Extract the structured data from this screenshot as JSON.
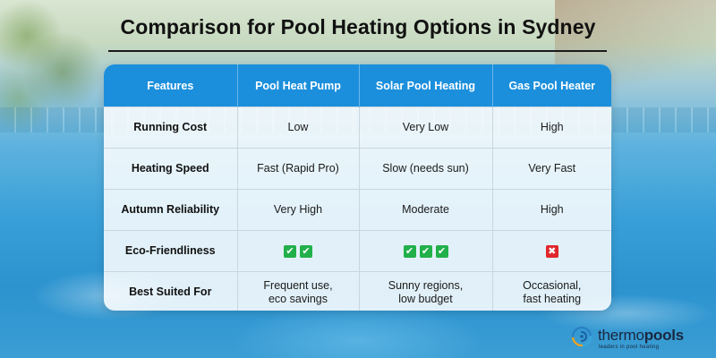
{
  "title": "Comparison for Pool Heating Options in Sydney",
  "table": {
    "headers": [
      "Features",
      "Pool Heat Pump",
      "Solar Pool Heating",
      "Gas Pool Heater"
    ],
    "rows": [
      {
        "feature": "Running Cost",
        "heat_pump": "Low",
        "solar": "Very Low",
        "gas": "High"
      },
      {
        "feature": "Heating Speed",
        "heat_pump": "Fast (Rapid Pro)",
        "solar": "Slow (needs sun)",
        "gas": "Very Fast"
      },
      {
        "feature": "Autumn Reliability",
        "heat_pump": "Very High",
        "solar": "Moderate",
        "gas": "High"
      },
      {
        "feature": "Eco-Friendliness",
        "heat_pump_checks": 2,
        "solar_checks": 3,
        "gas_cross": 1
      },
      {
        "feature": "Best Suited For",
        "heat_pump_line1": "Frequent use,",
        "heat_pump_line2": "eco savings",
        "solar_line1": "Sunny regions,",
        "solar_line2": "low budget",
        "gas_line1": "Occasional,",
        "gas_line2": "fast heating"
      }
    ]
  },
  "logo": {
    "name_light": "thermo",
    "name_bold": "pools",
    "tagline": "leaders in pool heating",
    "icon": "sun-spiral-icon"
  },
  "colors": {
    "header_bg": "#1b8fdc",
    "check": "#22b04b",
    "cross": "#e0262b"
  }
}
